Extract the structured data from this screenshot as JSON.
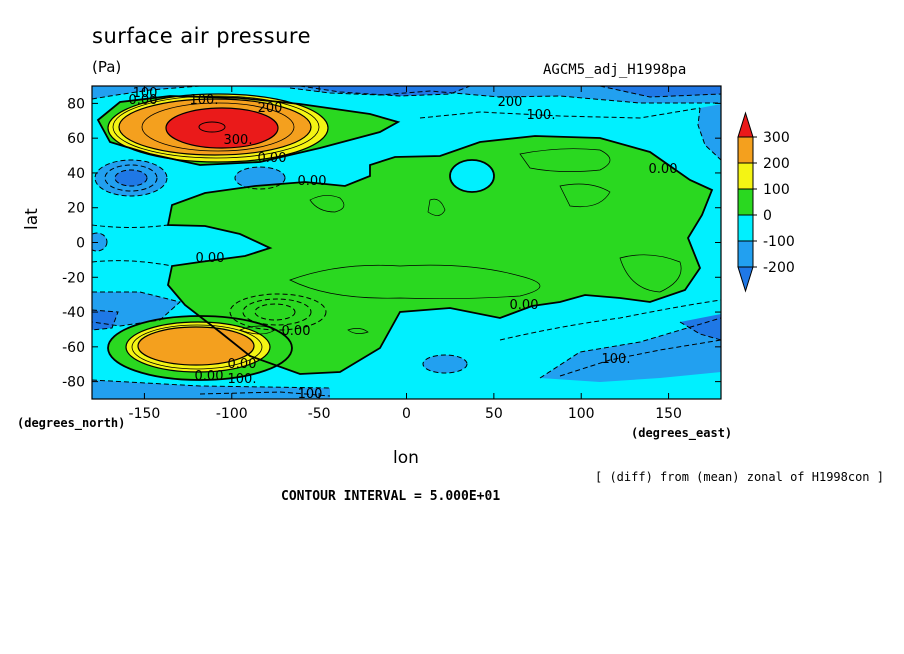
{
  "chart_data": {
    "type": "heatmap",
    "title": "surface air pressure",
    "units": "(Pa)",
    "run_label": "AGCM5_adj_H1998pa",
    "xlabel": "lon",
    "ylabel": "lat",
    "x_units": "(degrees_east)",
    "y_units": "(degrees_north)",
    "xlim": [
      -180,
      180
    ],
    "ylim": [
      -90,
      90
    ],
    "x_ticks": [
      -150,
      -100,
      -50,
      0,
      50,
      100,
      150
    ],
    "y_ticks": [
      80,
      60,
      40,
      20,
      0,
      -20,
      -40,
      -60,
      -80
    ],
    "colorbar": {
      "labels": [
        "300",
        "200",
        "100",
        "0",
        "-100",
        "-200"
      ],
      "levels": [
        -200,
        -100,
        0,
        100,
        200,
        300
      ],
      "colors": {
        "below_-200": "#1f78e6",
        "-200_to_-100": "#22a0f0",
        "-100_to_0": "#00f0ff",
        "0_to_100": "#2ad820",
        "100_to_200": "#f4f414",
        "200_to_300": "#f4a01e",
        "above_300": "#ea1a1a"
      }
    },
    "contour_labels": [
      "100",
      "0.00",
      "100.",
      "200",
      "300.",
      "0.00",
      "0.00",
      "200",
      "100.",
      "0.00",
      "0.00",
      "0.00",
      "0.00",
      "0.00",
      "0.00",
      "100.",
      "100",
      "100."
    ],
    "contour_interval": "CONTOUR INTERVAL = 5.000E+01",
    "note": "[ (diff) from (mean) zonal of H1998con ]"
  }
}
